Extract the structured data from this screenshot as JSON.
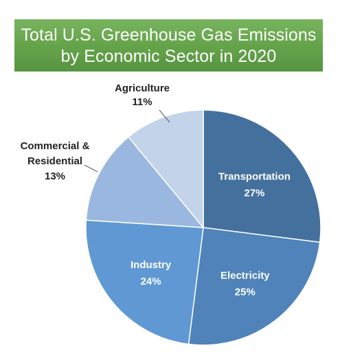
{
  "title": {
    "line1": "Total U.S. Greenhouse Gas Emissions",
    "line2": "by Economic Sector in 2020"
  },
  "colors": {
    "title_bg": "#64a24a",
    "title_text": "#ffffff",
    "label_inside": "#ffffff",
    "label_outside": "#222222",
    "slice_border": "#ffffff",
    "leader_line": "#555555"
  },
  "chart_data": {
    "type": "pie",
    "title": "Total U.S. Greenhouse Gas Emissions by Economic Sector in 2020",
    "start": "12 o'clock",
    "direction": "clockwise",
    "slices": [
      {
        "name": "Transportation",
        "value": 27,
        "value_label": "27%",
        "color": "#44709e",
        "label_placement": "inside"
      },
      {
        "name": "Electricity",
        "value": 25,
        "value_label": "25%",
        "color": "#4f83b9",
        "label_placement": "inside"
      },
      {
        "name": "Industry",
        "value": 24,
        "value_label": "24%",
        "color": "#5f98d2",
        "label_placement": "inside"
      },
      {
        "name": "Commercial & Residential",
        "name_lines": [
          "Commercial &",
          "Residential"
        ],
        "value": 13,
        "value_label": "13%",
        "color": "#9ab8df",
        "label_placement": "outside"
      },
      {
        "name": "Agriculture",
        "value": 11,
        "value_label": "11%",
        "color": "#c2d3ea",
        "label_placement": "outside"
      }
    ]
  }
}
